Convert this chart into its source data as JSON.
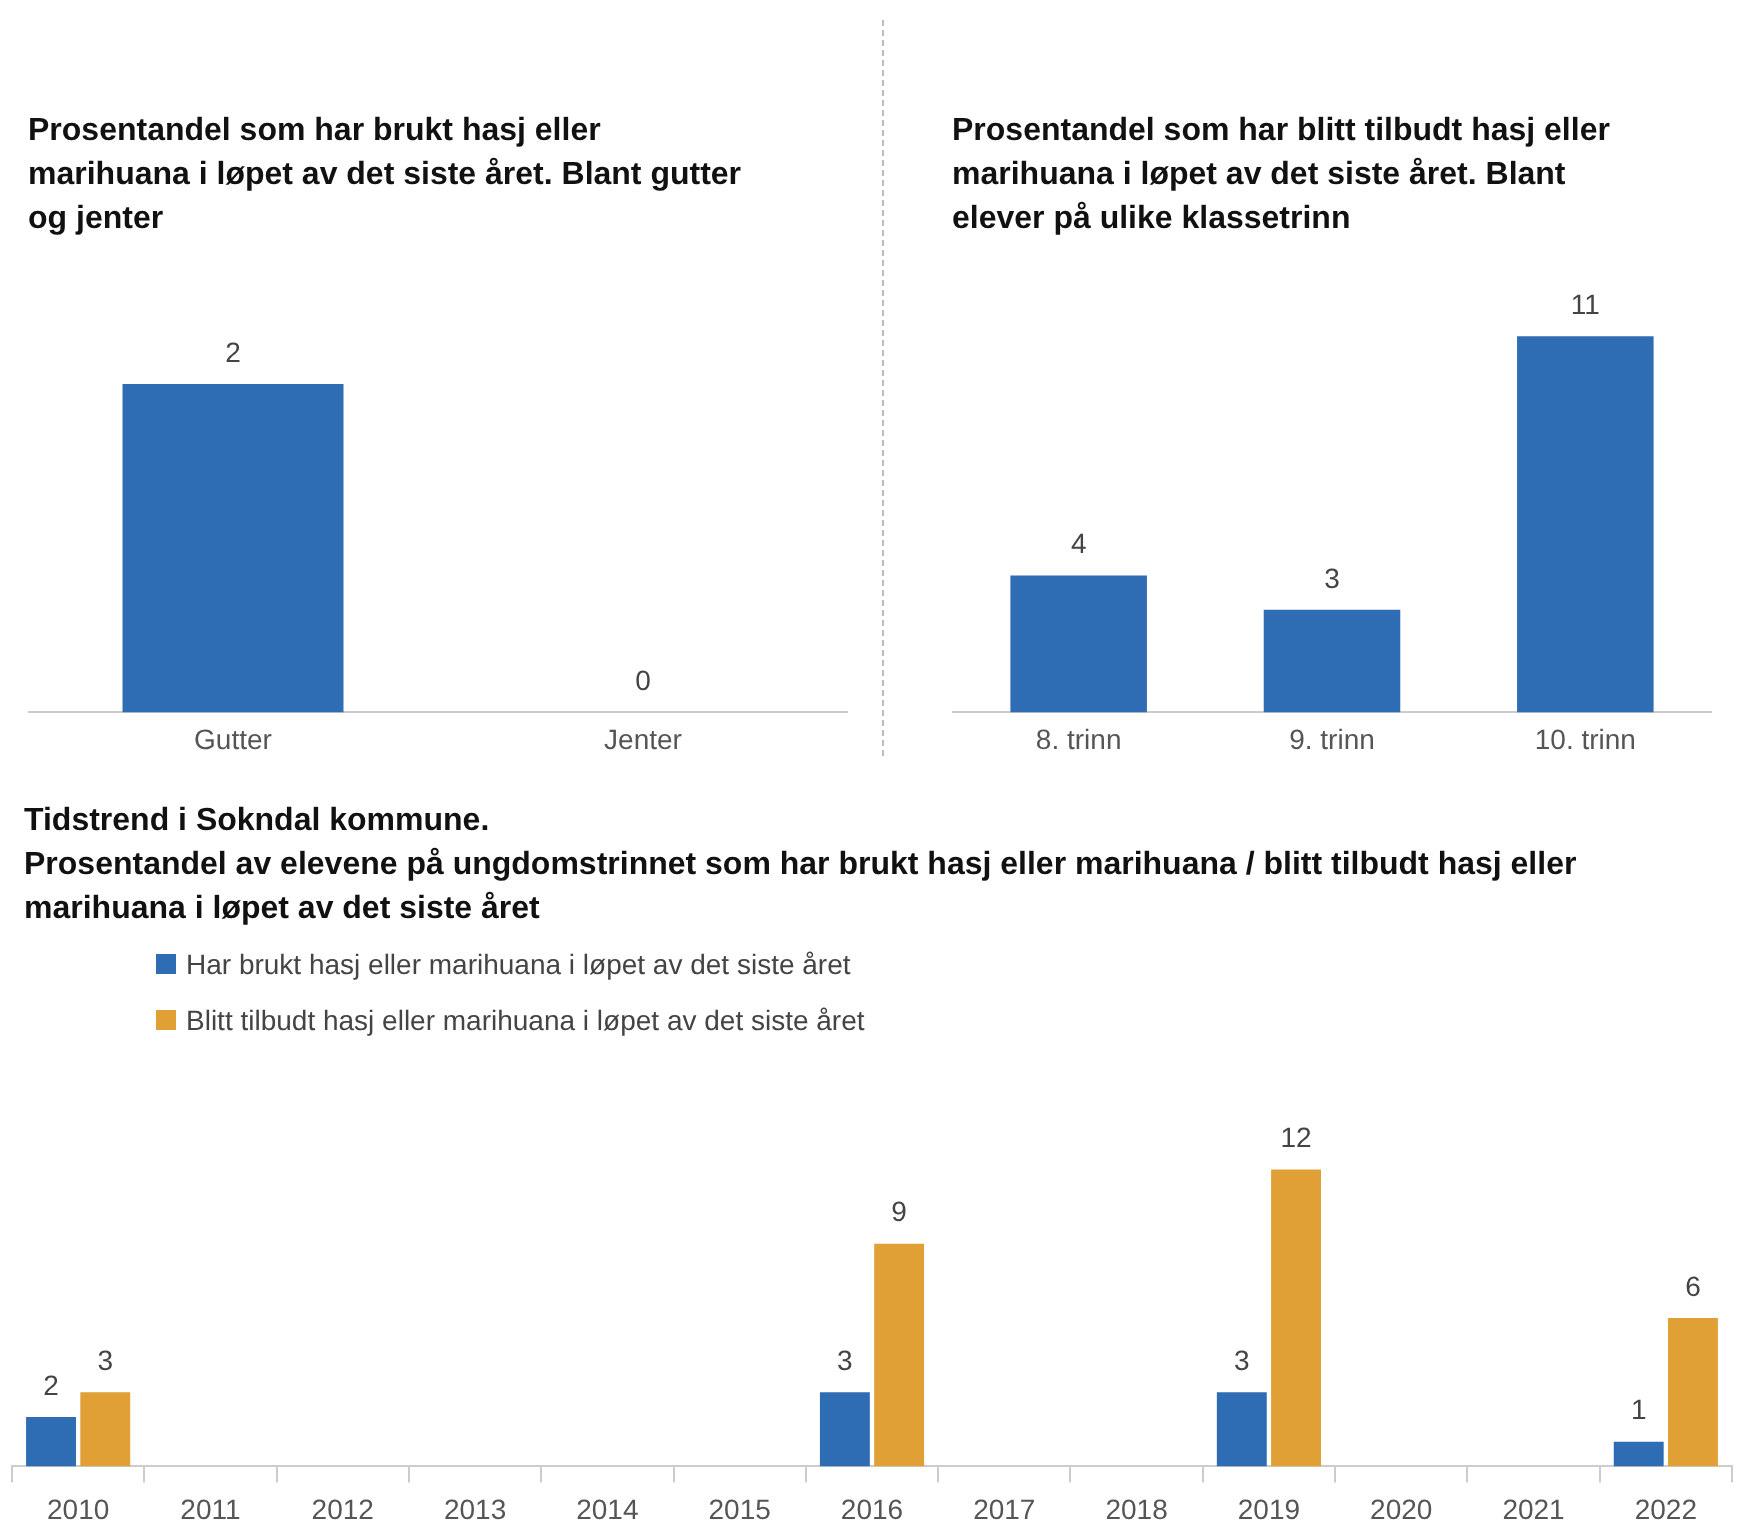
{
  "chart_data": [
    {
      "type": "bar",
      "title": "Prosentandel som har brukt hasj eller marihuana i løpet av det siste året. Blant gutter og jenter",
      "categories": [
        "Gutter",
        "Jenter"
      ],
      "values": [
        2,
        0
      ],
      "color": "#2e6db4",
      "data_labels": true
    },
    {
      "type": "bar",
      "title": "Prosentandel som har blitt tilbudt hasj eller marihuana i løpet av det siste året. Blant elever på ulike klassetrinn",
      "categories": [
        "8. trinn",
        "9. trinn",
        "10. trinn"
      ],
      "values": [
        4,
        3,
        11
      ],
      "color": "#2e6db4",
      "data_labels": true
    },
    {
      "type": "bar",
      "title": "Tidstrend i Sokndal kommune.",
      "subtitle": "Prosentandel av elevene på ungdomstrinnet som har brukt hasj eller marihuana / blitt tilbudt hasj eller marihuana i løpet av det siste året",
      "categories": [
        "2010",
        "2011",
        "2012",
        "2013",
        "2014",
        "2015",
        "2016",
        "2017",
        "2018",
        "2019",
        "2020",
        "2021",
        "2022"
      ],
      "series": [
        {
          "name": "Har brukt hasj eller marihuana i løpet av det siste året",
          "color": "#2e6db4",
          "values": [
            2,
            null,
            null,
            null,
            null,
            null,
            3,
            null,
            null,
            3,
            null,
            null,
            1
          ]
        },
        {
          "name": "Blitt tilbudt hasj eller marihuana i løpet av det siste året",
          "color": "#e0a035",
          "values": [
            3,
            null,
            null,
            null,
            null,
            null,
            9,
            null,
            null,
            12,
            null,
            null,
            6
          ]
        }
      ],
      "legend": "top left",
      "data_labels": true
    }
  ]
}
